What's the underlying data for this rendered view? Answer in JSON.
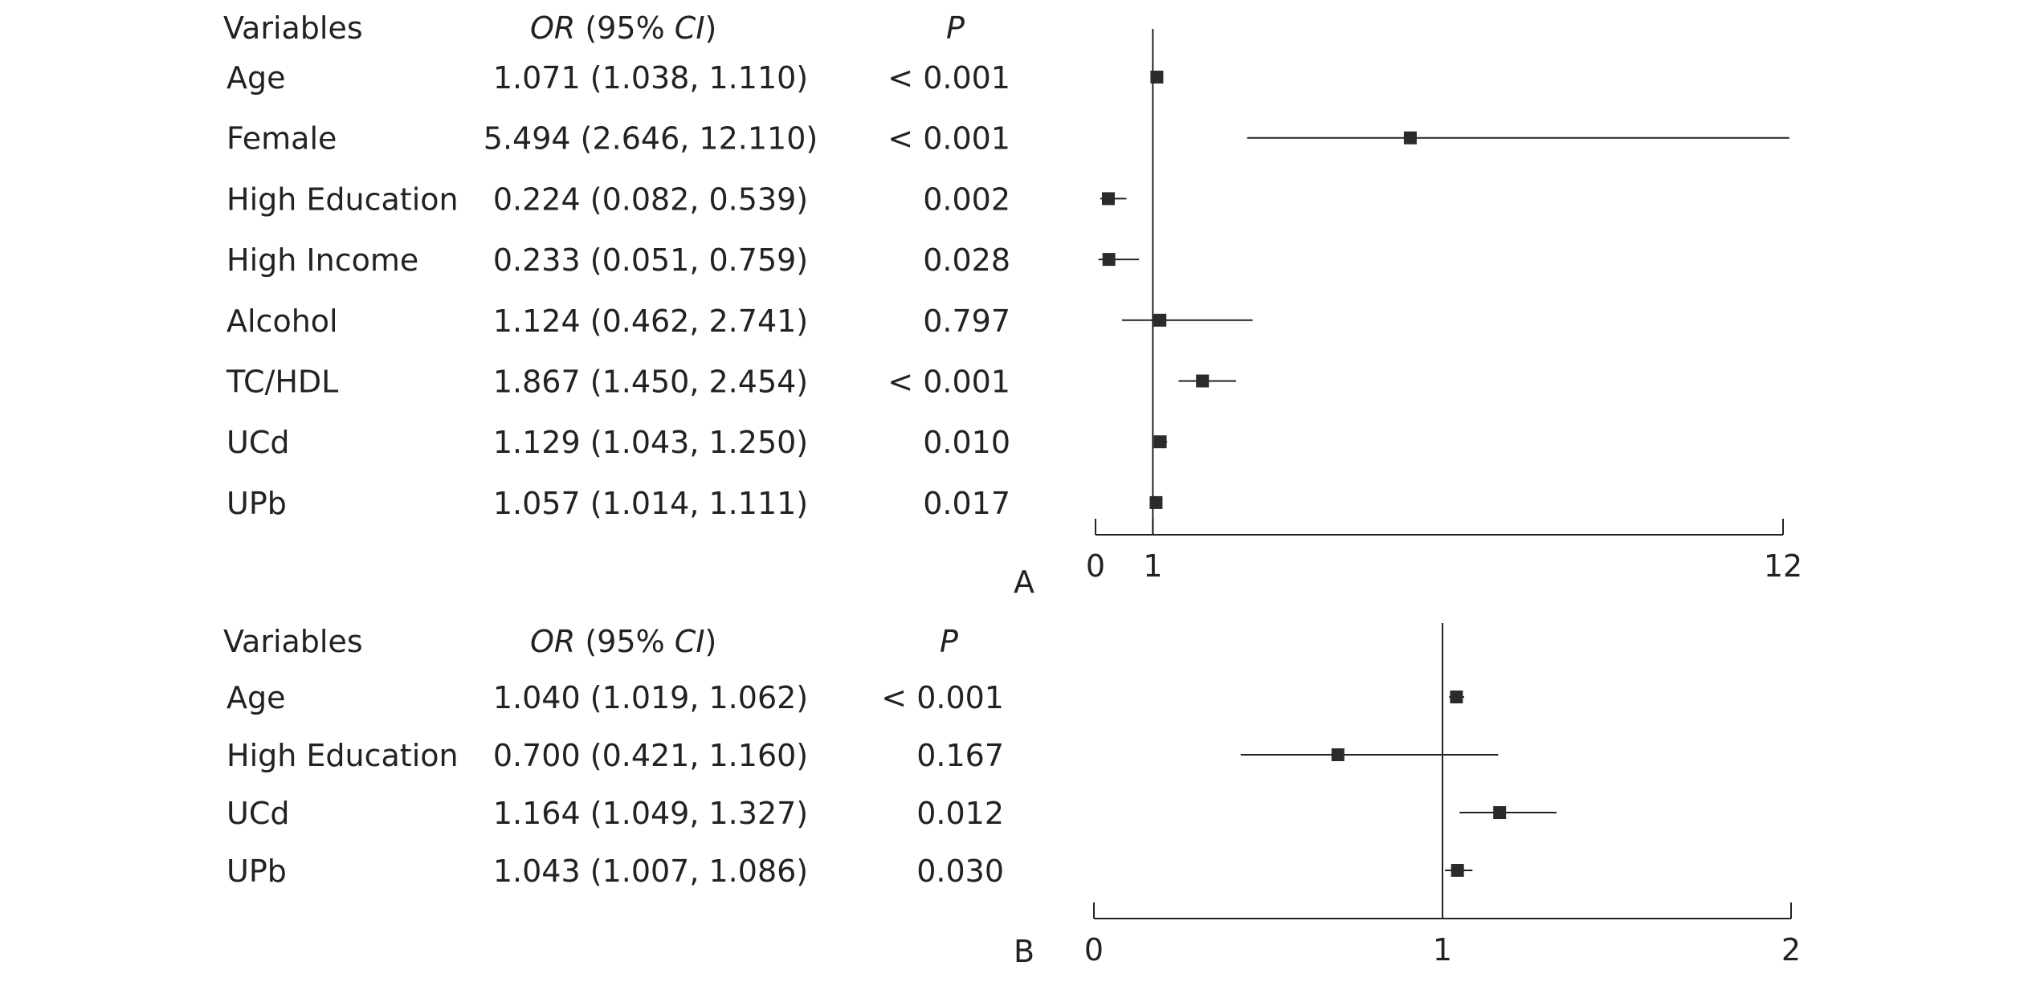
{
  "chart_data": [
    {
      "type": "forest",
      "panel_label": "A",
      "headers": {
        "variable": "Variables",
        "or_ci_italic": "OR",
        "or_ci_rest": " (95% ",
        "ci_italic": "CI",
        "ci_close": ")",
        "p": "P"
      },
      "reference_line": 1,
      "xlim": [
        0,
        12
      ],
      "x_ticks": [
        0,
        1,
        12
      ],
      "rows": [
        {
          "variable": "Age",
          "or_ci": "1.071 (1.038, 1.110)",
          "p": "< 0.001",
          "or": 1.071,
          "lo": 1.038,
          "hi": 1.11
        },
        {
          "variable": "Female",
          "or_ci": "5.494 (2.646, 12.110)",
          "p": "< 0.001",
          "or": 5.494,
          "lo": 2.646,
          "hi": 12.11
        },
        {
          "variable": "High Education",
          "or_ci": "0.224 (0.082, 0.539)",
          "p": "0.002",
          "or": 0.224,
          "lo": 0.082,
          "hi": 0.539
        },
        {
          "variable": "High Income",
          "or_ci": "0.233 (0.051, 0.759)",
          "p": "0.028",
          "or": 0.233,
          "lo": 0.051,
          "hi": 0.759
        },
        {
          "variable": "Alcohol",
          "or_ci": "1.124 (0.462, 2.741)",
          "p": "0.797",
          "or": 1.124,
          "lo": 0.462,
          "hi": 2.741
        },
        {
          "variable": "TC/HDL",
          "or_ci": "1.867 (1.450, 2.454)",
          "p": "< 0.001",
          "or": 1.867,
          "lo": 1.45,
          "hi": 2.454
        },
        {
          "variable": "UCd",
          "or_ci": "1.129 (1.043, 1.250)",
          "p": "0.010",
          "or": 1.129,
          "lo": 1.043,
          "hi": 1.25
        },
        {
          "variable": "UPb",
          "or_ci": "1.057 (1.014, 1.111)",
          "p": "0.017",
          "or": 1.057,
          "lo": 1.014,
          "hi": 1.111
        }
      ]
    },
    {
      "type": "forest",
      "panel_label": "B",
      "headers": {
        "variable": "Variables",
        "or_ci_italic": "OR",
        "or_ci_rest": " (95% ",
        "ci_italic": "CI",
        "ci_close": ")",
        "p": "P"
      },
      "reference_line": 1,
      "xlim": [
        0,
        2
      ],
      "x_ticks": [
        0,
        1,
        2
      ],
      "rows": [
        {
          "variable": "Age",
          "or_ci": "1.040 (1.019, 1.062)",
          "p": "< 0.001",
          "or": 1.04,
          "lo": 1.019,
          "hi": 1.062
        },
        {
          "variable": "High Education",
          "or_ci": "0.700 (0.421, 1.160)",
          "p": "0.167",
          "or": 0.7,
          "lo": 0.421,
          "hi": 1.16
        },
        {
          "variable": "UCd",
          "or_ci": "1.164 (1.049, 1.327)",
          "p": "0.012",
          "or": 1.164,
          "lo": 1.049,
          "hi": 1.327
        },
        {
          "variable": "UPb",
          "or_ci": "1.043 (1.007, 1.086)",
          "p": "0.030",
          "or": 1.043,
          "lo": 1.007,
          "hi": 1.086
        }
      ]
    }
  ]
}
